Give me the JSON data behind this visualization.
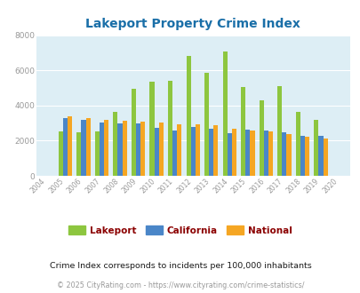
{
  "title": "Lakeport Property Crime Index",
  "years": [
    "2004",
    "2005",
    "2006",
    "2007",
    "2008",
    "2009",
    "2010",
    "2011",
    "2012",
    "2013",
    "2014",
    "2015",
    "2016",
    "2017",
    "2018",
    "2019",
    "2020"
  ],
  "lakeport": [
    0,
    2550,
    2480,
    2530,
    3620,
    4950,
    5350,
    5420,
    6800,
    5850,
    7050,
    5050,
    4280,
    5100,
    3650,
    3200,
    0
  ],
  "california": [
    0,
    3280,
    3160,
    3030,
    2970,
    2970,
    2720,
    2580,
    2780,
    2700,
    2420,
    2620,
    2580,
    2450,
    2280,
    2280,
    0
  ],
  "national": [
    0,
    3390,
    3290,
    3180,
    3140,
    3060,
    3040,
    2940,
    2940,
    2870,
    2700,
    2590,
    2520,
    2360,
    2200,
    2110,
    0
  ],
  "ylim": [
    0,
    8000
  ],
  "yticks": [
    0,
    2000,
    4000,
    6000,
    8000
  ],
  "bar_color_lakeport": "#8dc63f",
  "bar_color_california": "#4a86c8",
  "bar_color_national": "#f5a623",
  "bg_color": "#ddeef5",
  "title_color": "#1a6fa8",
  "legend_label_color": "#8b0000",
  "subtitle_color": "#1a1a1a",
  "footnote_color": "#999999",
  "subtitle": "Crime Index corresponds to incidents per 100,000 inhabitants",
  "footnote": "© 2025 CityRating.com - https://www.cityrating.com/crime-statistics/",
  "tick_color": "#999999",
  "grid_color": "#ffffff"
}
